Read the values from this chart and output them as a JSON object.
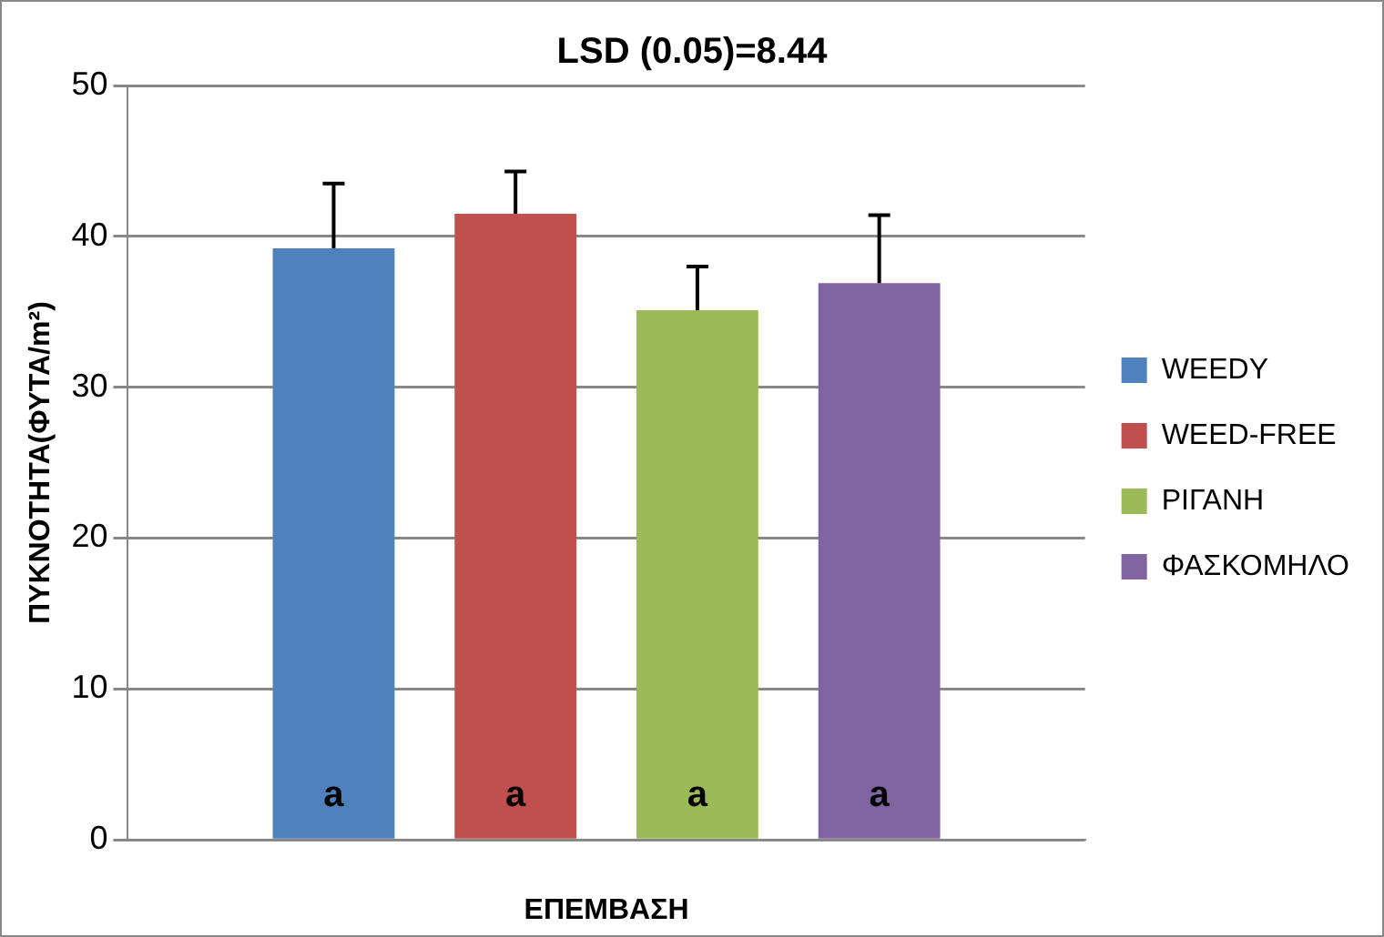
{
  "chart_data": {
    "type": "bar",
    "title": "LSD (0.05)=8.44",
    "xlabel": "ΕΠΕΜΒΑΣΗ",
    "ylabel": "ΠΥΚΝΟΤΗΤΑ(ΦΥΤΑ/m²)",
    "categories": [
      null
    ],
    "series": [
      {
        "name": "WEEDY",
        "color": "#4f81bd",
        "values": [
          39.2
        ],
        "errors": [
          [
            39.2,
            43.5
          ]
        ],
        "value_labels": [
          "a"
        ]
      },
      {
        "name": "WEED-FREE",
        "color": "#c0504d",
        "values": [
          41.5
        ],
        "errors": [
          [
            41.5,
            44.3
          ]
        ],
        "value_labels": [
          "a"
        ]
      },
      {
        "name": "ΡΙΓΑΝΗ",
        "color": "#9bbb59",
        "values": [
          35.1
        ],
        "errors": [
          [
            35.1,
            38.0
          ]
        ],
        "value_labels": [
          "a"
        ]
      },
      {
        "name": "ΦΑΣΚΟΜΗΛΟ",
        "color": "#8064a2",
        "values": [
          36.9
        ],
        "errors": [
          [
            36.9,
            41.4
          ]
        ],
        "value_labels": [
          "a"
        ]
      }
    ],
    "ylim": [
      0,
      50
    ],
    "yticks": [
      0,
      10,
      20,
      30,
      40,
      50
    ],
    "grid": "y",
    "legend": "right"
  }
}
